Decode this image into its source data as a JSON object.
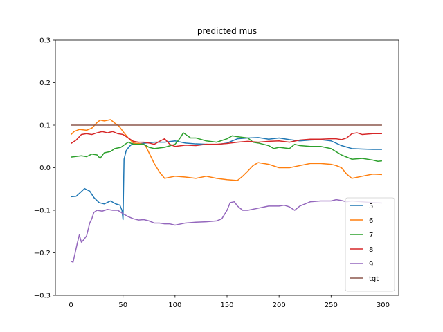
{
  "chart_data": {
    "type": "line",
    "title": "predicted mus",
    "xlabel": "",
    "ylabel": "",
    "xlim": [
      -15,
      315
    ],
    "ylim": [
      -0.3,
      0.3
    ],
    "xticks": [
      0,
      50,
      100,
      150,
      200,
      250,
      300
    ],
    "yticks": [
      -0.3,
      -0.2,
      -0.1,
      0.0,
      0.1,
      0.2,
      0.3
    ],
    "ytick_labels": [
      "−0.3",
      "−0.2",
      "−0.1",
      "0.0",
      "0.1",
      "0.2",
      "0.3"
    ],
    "grid": false,
    "legend_position": "lower-right",
    "series": [
      {
        "name": "5",
        "color": "#1f77b4",
        "points": [
          [
            0,
            -0.068
          ],
          [
            5,
            -0.067
          ],
          [
            10,
            -0.056
          ],
          [
            13,
            -0.049
          ],
          [
            18,
            -0.055
          ],
          [
            22,
            -0.07
          ],
          [
            27,
            -0.082
          ],
          [
            32,
            -0.085
          ],
          [
            38,
            -0.078
          ],
          [
            43,
            -0.085
          ],
          [
            47,
            -0.088
          ],
          [
            49,
            -0.1
          ],
          [
            50,
            -0.122
          ],
          [
            51,
            0.02
          ],
          [
            53,
            0.04
          ],
          [
            56,
            0.05
          ],
          [
            60,
            0.058
          ],
          [
            65,
            0.056
          ],
          [
            72,
            0.058
          ],
          [
            80,
            0.06
          ],
          [
            90,
            0.06
          ],
          [
            100,
            0.063
          ],
          [
            110,
            0.058
          ],
          [
            120,
            0.056
          ],
          [
            130,
            0.055
          ],
          [
            140,
            0.054
          ],
          [
            150,
            0.058
          ],
          [
            160,
            0.068
          ],
          [
            170,
            0.07
          ],
          [
            180,
            0.071
          ],
          [
            190,
            0.067
          ],
          [
            200,
            0.07
          ],
          [
            210,
            0.066
          ],
          [
            220,
            0.063
          ],
          [
            230,
            0.065
          ],
          [
            240,
            0.066
          ],
          [
            250,
            0.063
          ],
          [
            260,
            0.052
          ],
          [
            270,
            0.045
          ],
          [
            280,
            0.044
          ],
          [
            290,
            0.043
          ],
          [
            299,
            0.043
          ]
        ]
      },
      {
        "name": "6",
        "color": "#ff7f0e",
        "points": [
          [
            0,
            0.078
          ],
          [
            3,
            0.085
          ],
          [
            8,
            0.09
          ],
          [
            15,
            0.088
          ],
          [
            20,
            0.093
          ],
          [
            25,
            0.106
          ],
          [
            28,
            0.112
          ],
          [
            32,
            0.11
          ],
          [
            38,
            0.113
          ],
          [
            42,
            0.105
          ],
          [
            46,
            0.098
          ],
          [
            50,
            0.085
          ],
          [
            55,
            0.07
          ],
          [
            60,
            0.058
          ],
          [
            65,
            0.057
          ],
          [
            70,
            0.055
          ],
          [
            72,
            0.05
          ],
          [
            75,
            0.035
          ],
          [
            80,
            0.01
          ],
          [
            85,
            -0.01
          ],
          [
            90,
            -0.025
          ],
          [
            100,
            -0.02
          ],
          [
            110,
            -0.022
          ],
          [
            120,
            -0.025
          ],
          [
            130,
            -0.02
          ],
          [
            140,
            -0.025
          ],
          [
            150,
            -0.028
          ],
          [
            160,
            -0.03
          ],
          [
            165,
            -0.02
          ],
          [
            170,
            -0.008
          ],
          [
            175,
            0.005
          ],
          [
            180,
            0.012
          ],
          [
            190,
            0.008
          ],
          [
            200,
            0.0
          ],
          [
            210,
            0.0
          ],
          [
            220,
            0.005
          ],
          [
            230,
            0.01
          ],
          [
            240,
            0.01
          ],
          [
            250,
            0.008
          ],
          [
            255,
            0.005
          ],
          [
            260,
            0.0
          ],
          [
            265,
            -0.015
          ],
          [
            270,
            -0.025
          ],
          [
            280,
            -0.02
          ],
          [
            290,
            -0.015
          ],
          [
            299,
            -0.016
          ]
        ]
      },
      {
        "name": "7",
        "color": "#2ca02c",
        "points": [
          [
            0,
            0.025
          ],
          [
            10,
            0.028
          ],
          [
            15,
            0.026
          ],
          [
            20,
            0.032
          ],
          [
            25,
            0.03
          ],
          [
            28,
            0.022
          ],
          [
            32,
            0.035
          ],
          [
            38,
            0.038
          ],
          [
            42,
            0.045
          ],
          [
            48,
            0.048
          ],
          [
            52,
            0.055
          ],
          [
            55,
            0.06
          ],
          [
            60,
            0.055
          ],
          [
            70,
            0.055
          ],
          [
            75,
            0.048
          ],
          [
            80,
            0.045
          ],
          [
            90,
            0.048
          ],
          [
            100,
            0.055
          ],
          [
            105,
            0.07
          ],
          [
            108,
            0.082
          ],
          [
            115,
            0.07
          ],
          [
            120,
            0.07
          ],
          [
            130,
            0.063
          ],
          [
            140,
            0.06
          ],
          [
            150,
            0.068
          ],
          [
            155,
            0.075
          ],
          [
            160,
            0.073
          ],
          [
            170,
            0.07
          ],
          [
            175,
            0.06
          ],
          [
            180,
            0.058
          ],
          [
            190,
            0.052
          ],
          [
            195,
            0.045
          ],
          [
            200,
            0.048
          ],
          [
            210,
            0.045
          ],
          [
            215,
            0.055
          ],
          [
            220,
            0.052
          ],
          [
            230,
            0.05
          ],
          [
            240,
            0.05
          ],
          [
            250,
            0.045
          ],
          [
            260,
            0.03
          ],
          [
            265,
            0.025
          ],
          [
            270,
            0.02
          ],
          [
            280,
            0.022
          ],
          [
            290,
            0.018
          ],
          [
            295,
            0.015
          ],
          [
            299,
            0.016
          ]
        ]
      },
      {
        "name": "8",
        "color": "#d62728",
        "points": [
          [
            0,
            0.057
          ],
          [
            5,
            0.065
          ],
          [
            10,
            0.078
          ],
          [
            15,
            0.08
          ],
          [
            20,
            0.078
          ],
          [
            25,
            0.082
          ],
          [
            30,
            0.085
          ],
          [
            35,
            0.082
          ],
          [
            40,
            0.085
          ],
          [
            45,
            0.08
          ],
          [
            50,
            0.078
          ],
          [
            55,
            0.07
          ],
          [
            60,
            0.062
          ],
          [
            65,
            0.06
          ],
          [
            70,
            0.06
          ],
          [
            75,
            0.058
          ],
          [
            80,
            0.055
          ],
          [
            85,
            0.062
          ],
          [
            90,
            0.068
          ],
          [
            95,
            0.055
          ],
          [
            100,
            0.05
          ],
          [
            110,
            0.053
          ],
          [
            120,
            0.052
          ],
          [
            130,
            0.055
          ],
          [
            140,
            0.055
          ],
          [
            150,
            0.057
          ],
          [
            160,
            0.06
          ],
          [
            170,
            0.062
          ],
          [
            180,
            0.06
          ],
          [
            190,
            0.062
          ],
          [
            200,
            0.063
          ],
          [
            210,
            0.06
          ],
          [
            220,
            0.065
          ],
          [
            230,
            0.067
          ],
          [
            240,
            0.067
          ],
          [
            250,
            0.068
          ],
          [
            255,
            0.068
          ],
          [
            260,
            0.066
          ],
          [
            265,
            0.07
          ],
          [
            270,
            0.08
          ],
          [
            275,
            0.082
          ],
          [
            280,
            0.078
          ],
          [
            290,
            0.08
          ],
          [
            299,
            0.08
          ]
        ]
      },
      {
        "name": "9",
        "color": "#9467bd",
        "points": [
          [
            0,
            -0.22
          ],
          [
            2,
            -0.222
          ],
          [
            4,
            -0.2
          ],
          [
            6,
            -0.178
          ],
          [
            8,
            -0.158
          ],
          [
            10,
            -0.175
          ],
          [
            12,
            -0.17
          ],
          [
            15,
            -0.16
          ],
          [
            18,
            -0.13
          ],
          [
            20,
            -0.12
          ],
          [
            22,
            -0.105
          ],
          [
            25,
            -0.1
          ],
          [
            30,
            -0.102
          ],
          [
            35,
            -0.098
          ],
          [
            40,
            -0.1
          ],
          [
            45,
            -0.1
          ],
          [
            50,
            -0.108
          ],
          [
            55,
            -0.115
          ],
          [
            60,
            -0.12
          ],
          [
            65,
            -0.123
          ],
          [
            70,
            -0.122
          ],
          [
            75,
            -0.125
          ],
          [
            80,
            -0.13
          ],
          [
            85,
            -0.13
          ],
          [
            90,
            -0.132
          ],
          [
            95,
            -0.132
          ],
          [
            100,
            -0.135
          ],
          [
            110,
            -0.13
          ],
          [
            120,
            -0.128
          ],
          [
            130,
            -0.127
          ],
          [
            140,
            -0.125
          ],
          [
            145,
            -0.12
          ],
          [
            150,
            -0.1
          ],
          [
            153,
            -0.082
          ],
          [
            157,
            -0.08
          ],
          [
            160,
            -0.09
          ],
          [
            165,
            -0.1
          ],
          [
            170,
            -0.1
          ],
          [
            180,
            -0.095
          ],
          [
            190,
            -0.09
          ],
          [
            200,
            -0.09
          ],
          [
            205,
            -0.088
          ],
          [
            210,
            -0.092
          ],
          [
            215,
            -0.1
          ],
          [
            220,
            -0.09
          ],
          [
            225,
            -0.085
          ],
          [
            230,
            -0.08
          ],
          [
            240,
            -0.078
          ],
          [
            250,
            -0.078
          ],
          [
            255,
            -0.075
          ],
          [
            260,
            -0.077
          ],
          [
            265,
            -0.08
          ],
          [
            270,
            -0.078
          ],
          [
            280,
            -0.08
          ],
          [
            290,
            -0.082
          ],
          [
            299,
            -0.083
          ]
        ]
      },
      {
        "name": "tgt",
        "color": "#8c564b",
        "points": [
          [
            0,
            0.1
          ],
          [
            299,
            0.1
          ]
        ]
      }
    ]
  }
}
